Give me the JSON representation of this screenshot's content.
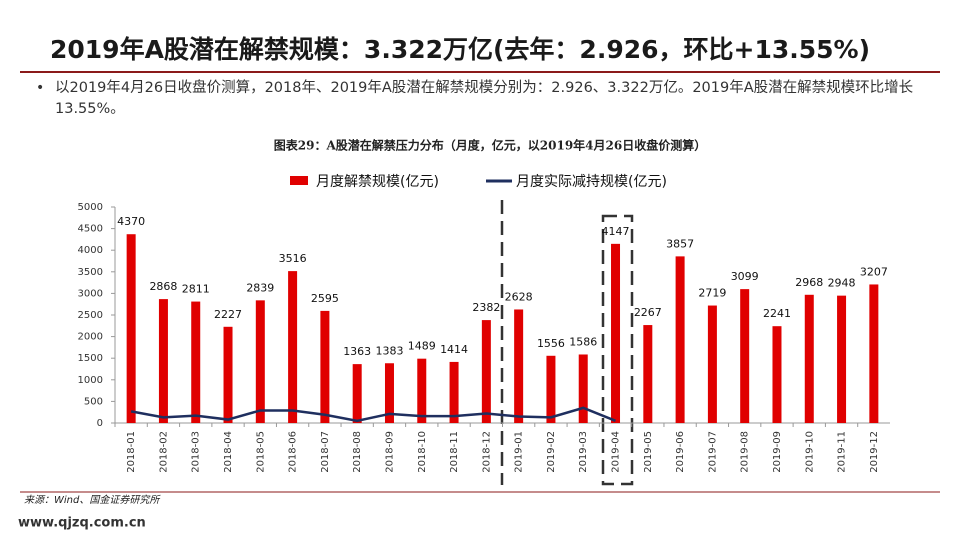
{
  "header": {
    "title": "2019年A股潜在解禁规模：3.322万亿(去年：2.926，环比+13.55%)"
  },
  "bullet": "以2019年4月26日收盘价测算，2018年、2019年A股潜在解禁规模分别为：2.926、3.322万亿。2019年A股潜在解禁规模环比增长13.55%。",
  "chart_data": {
    "type": "bar",
    "title": "图表29：A股潜在解禁压力分布（月度，亿元，以2019年4月26日收盘价测算）",
    "categories": [
      "2018-01",
      "2018-02",
      "2018-03",
      "2018-04",
      "2018-05",
      "2018-06",
      "2018-07",
      "2018-08",
      "2018-09",
      "2018-10",
      "2018-11",
      "2018-12",
      "2019-01",
      "2019-02",
      "2019-03",
      "2019-04",
      "2019-05",
      "2019-06",
      "2019-07",
      "2019-08",
      "2019-09",
      "2019-10",
      "2019-11",
      "2019-12"
    ],
    "series": [
      {
        "name": "月度解禁规模(亿元)",
        "type": "bar",
        "color": "#e00000",
        "values": [
          4370,
          2868,
          2811,
          2227,
          2839,
          3516,
          2595,
          1363,
          1383,
          1489,
          1414,
          2382,
          2628,
          1556,
          1586,
          4147,
          2267,
          3857,
          2719,
          3099,
          2241,
          2968,
          2948,
          3207
        ]
      },
      {
        "name": "月度实际减持规模(亿元)",
        "type": "line",
        "color": "#1f2f5f",
        "values": [
          270,
          130,
          170,
          80,
          290,
          290,
          190,
          50,
          210,
          160,
          160,
          220,
          150,
          130,
          350,
          50,
          null,
          null,
          null,
          null,
          null,
          null,
          null,
          null
        ]
      }
    ],
    "ylim": [
      0,
      5000
    ],
    "yticks": [
      0,
      500,
      1000,
      1500,
      2000,
      2500,
      3000,
      3500,
      4000,
      4500,
      5000
    ],
    "grid": false
  },
  "footer": {
    "source": "来源：Wind、国金证券研究所",
    "watermark": "www.qjzq.com.cn"
  }
}
